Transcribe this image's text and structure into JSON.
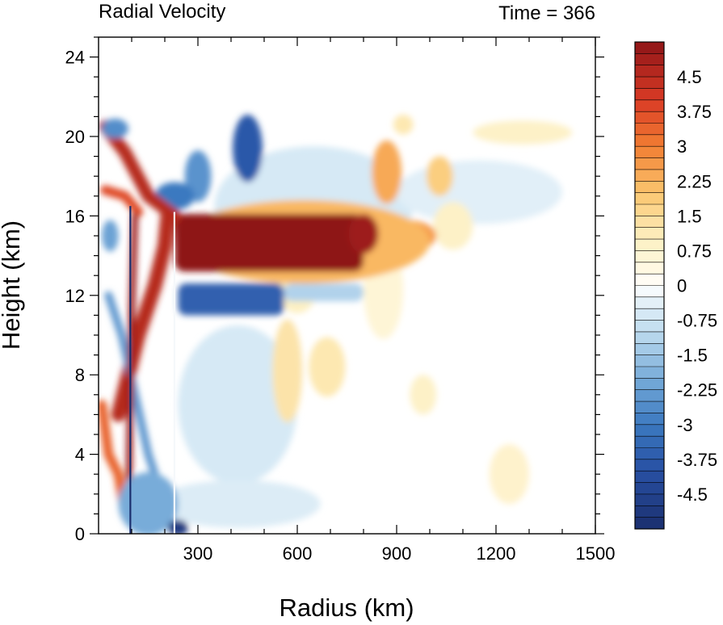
{
  "chart_data": {
    "type": "heatmap",
    "title": "Radial Velocity",
    "right_title": "Time = 366",
    "xlabel": "Radius (km)",
    "ylabel": "Height (km)",
    "xlim": [
      0,
      1500
    ],
    "ylim": [
      0,
      25
    ],
    "x_ticks": [
      300,
      600,
      900,
      1200,
      1500
    ],
    "y_ticks": [
      0,
      4,
      8,
      12,
      16,
      20,
      24
    ],
    "colorbar": {
      "min": -5.25,
      "max": 5.25,
      "step": 0.25,
      "labels": [
        "4.5",
        "3.75",
        "3",
        "2.25",
        "1.5",
        "0.75",
        "0",
        "-0.75",
        "-1.5",
        "-2.25",
        "-3",
        "-3.75",
        "-4.5"
      ],
      "label_values": [
        4.5,
        3.75,
        3,
        2.25,
        1.5,
        0.75,
        0,
        -0.75,
        -1.5,
        -2.25,
        -3,
        -3.75,
        -4.5
      ],
      "stops": [
        {
          "v": -5.25,
          "c": "#1b2f6e"
        },
        {
          "v": -4.0,
          "c": "#2850a3"
        },
        {
          "v": -3.0,
          "c": "#3b79c0"
        },
        {
          "v": -2.0,
          "c": "#78acd9"
        },
        {
          "v": -1.0,
          "c": "#bfdcef"
        },
        {
          "v": -0.25,
          "c": "#eaf4fa"
        },
        {
          "v": 0.0,
          "c": "#ffffff"
        },
        {
          "v": 0.25,
          "c": "#fff9e8"
        },
        {
          "v": 1.0,
          "c": "#fdf0c2"
        },
        {
          "v": 2.0,
          "c": "#fbc66e"
        },
        {
          "v": 3.0,
          "c": "#f27e33"
        },
        {
          "v": 4.0,
          "c": "#da3b25"
        },
        {
          "v": 5.25,
          "c": "#8e1518"
        }
      ]
    },
    "features": [
      {
        "name": "upper-outflow-core",
        "x": [
          240,
          800
        ],
        "y": [
          13.2,
          16.1
        ],
        "value": 5.2
      },
      {
        "name": "outflow-tongue",
        "x": [
          800,
          1000
        ],
        "y": [
          14.2,
          15.8
        ],
        "value": 1.8
      },
      {
        "name": "inflow-below-outflow",
        "x": [
          240,
          560
        ],
        "y": [
          11.0,
          12.6
        ],
        "value": -3.8
      },
      {
        "name": "eyewall-updraft-band",
        "x": [
          80,
          210
        ],
        "y": [
          3,
          16.5
        ],
        "value": 4.2
      },
      {
        "name": "low-level-inflow",
        "x": [
          30,
          230
        ],
        "y": [
          0,
          3
        ],
        "value": -2.5
      },
      {
        "name": "upper-level-inflow",
        "x": [
          400,
          500
        ],
        "y": [
          18,
          21
        ],
        "value": -4.0
      },
      {
        "name": "high-level-outflow-arc",
        "x": [
          30,
          230
        ],
        "y": [
          16,
          21
        ],
        "value": 3.5
      },
      {
        "name": "mid-level-weak-outflow",
        "x": [
          520,
          750
        ],
        "y": [
          6,
          10
        ],
        "value": 1.0
      }
    ]
  }
}
